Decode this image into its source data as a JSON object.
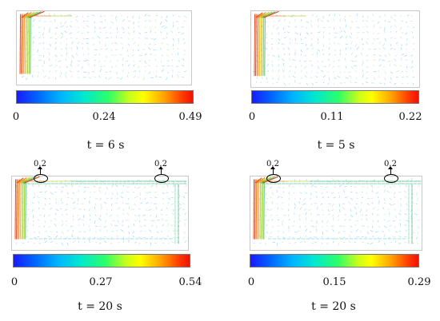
{
  "panels": [
    {
      "time_label": "t = 6 s",
      "colorbar": {
        "min": "0",
        "mid": "0.24",
        "max": "0.49"
      },
      "annotations": []
    },
    {
      "time_label": "t = 5 s",
      "colorbar": {
        "min": "0",
        "mid": "0.11",
        "max": "0.22"
      },
      "annotations": []
    },
    {
      "time_label": "t = 20 s",
      "colorbar": {
        "min": "0",
        "mid": "0.27",
        "max": "0.54"
      },
      "annotations": [
        {
          "label": "0.2"
        },
        {
          "label": "0.2"
        }
      ]
    },
    {
      "time_label": "t = 20 s",
      "colorbar": {
        "min": "0",
        "mid": "0.15",
        "max": "0.29"
      },
      "annotations": [
        {
          "label": "0.2"
        },
        {
          "label": "0.2"
        }
      ]
    }
  ],
  "colors": {
    "frame": "#c8c8c8",
    "vector_low": "#7fd0e8",
    "vector_high": "#e03a1a"
  }
}
